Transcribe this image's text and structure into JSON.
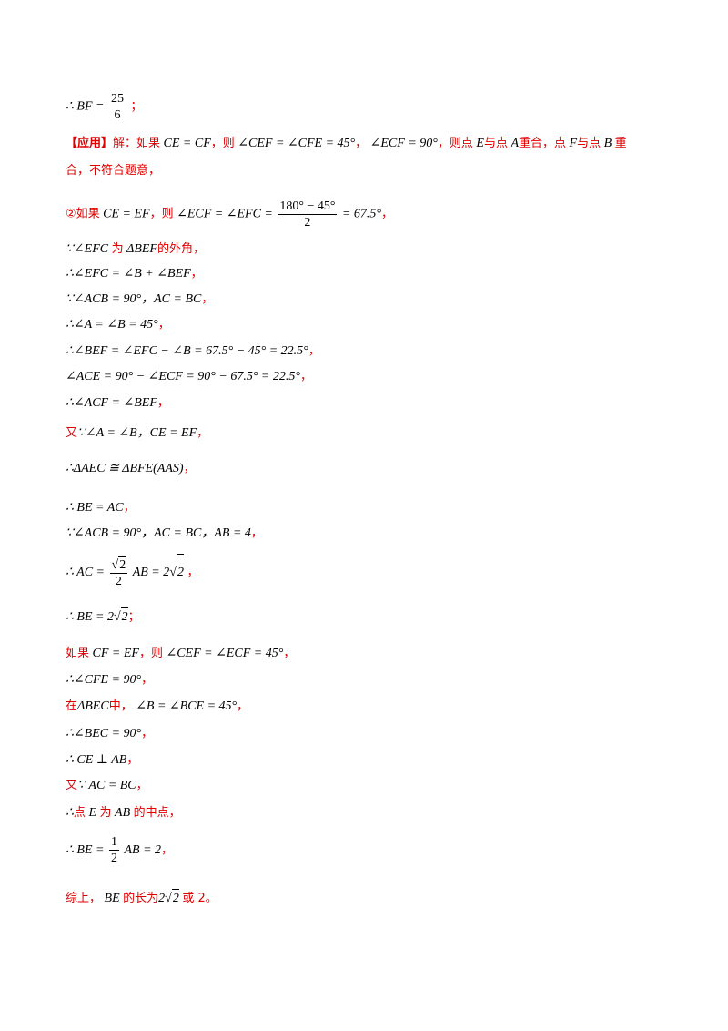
{
  "lines": {
    "l1_pre": "∴ BF =",
    "l1_num": "25",
    "l1_den": "6",
    "l1_end": "；",
    "l2_tag": "【应用】",
    "l2_a": "解：如果",
    "l2_m1": "CE = CF",
    "l2_b": "，则",
    "l2_m2": "∠CEF = ∠CFE = 45°",
    "l2_c": "，",
    "l2_m3": "∠ECF = 90°",
    "l2_d": "，则点",
    "l2_m4": "E",
    "l2_e": "与点",
    "l2_m5": "A",
    "l2_f": "重合，点",
    "l2_m6": "F",
    "l2_g": "与点",
    "l2_m7": "B",
    "l2_h": "重",
    "l3": "合，不符合题意，",
    "l4_a": "②如果",
    "l4_m1": "CE = EF",
    "l4_b": "，则",
    "l4_m2": "∠ECF = ∠EFC =",
    "l4_num": "180° − 45°",
    "l4_den": "2",
    "l4_m3": "= 67.5°",
    "l4_c": "，",
    "l5_m1": "∵∠EFC",
    "l5_a": "为",
    "l5_m2": "ΔBEF",
    "l5_b": "的外角，",
    "l6": "∴∠EFC = ∠B + ∠BEF",
    "l7": "∵∠ACB = 90°，AC = BC",
    "l8": "∴∠A = ∠B = 45°",
    "l9": "∴∠BEF = ∠EFC − ∠B = 67.5° − 45° = 22.5°",
    "l10": "∠ACE = 90° − ∠ECF = 90° − 67.5° = 22.5°",
    "l11": "∴∠ACF = ∠BEF",
    "l12_a": "又",
    "l12_m": "∵∠A = ∠B，CE = EF",
    "l13": "∴ΔAEC ≅ ΔBFE(AAS)",
    "l14": "∴ BE = AC",
    "l15": "∵∠ACB = 90°，AC = BC，AB = 4",
    "l16_pre": "∴ AC =",
    "l16_num": "2",
    "l16_den": "2",
    "l16_post": "AB = 2",
    "l16_rad": "2",
    "l17_pre": "∴ BE = 2",
    "l17_rad": "2",
    "l18_a": "如果",
    "l18_m1": "CF = EF",
    "l18_b": "，则",
    "l18_m2": "∠CEF = ∠ECF = 45°",
    "l19": "∴∠CFE = 90°",
    "l20_a": "在",
    "l20_m1": "ΔBEC",
    "l20_b": "中，",
    "l20_m2": "∠B = ∠BCE = 45°",
    "l21": "∴∠BEC = 90°",
    "l22": "∴ CE ⊥ AB",
    "l23_a": "又",
    "l23_m": "∵ AC = BC",
    "l24_m1": "∴",
    "l24_a": "点",
    "l24_m2": "E",
    "l24_b": "为",
    "l24_m3": "AB",
    "l24_c": "的中点，",
    "l25_pre": "∴ BE =",
    "l25_num": "1",
    "l25_den": "2",
    "l25_post": "AB = 2",
    "l26_a": "综上，",
    "l26_m1": "BE",
    "l26_b": "的长为",
    "l26_m2": "2",
    "l26_rad": "2",
    "l26_c": "或 2。",
    "comma": "，",
    "semi": "；"
  }
}
